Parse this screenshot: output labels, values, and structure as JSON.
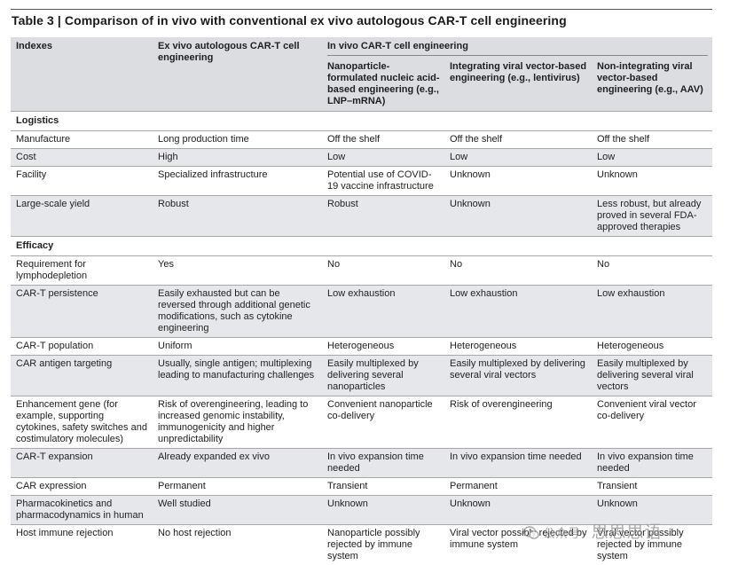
{
  "title": "Table 3 | Comparison of in vivo with conventional ex vivo autologous CAR-T cell engineering",
  "header": {
    "indexes": "Indexes",
    "ex_vivo": "Ex vivo autologous CAR-T cell engineering",
    "in_vivo": "In vivo CAR-T cell engineering",
    "nanoparticle": "Nanoparticle-formulated nucleic acid-based engineering (e.g., LNP–mRNA)",
    "integrating": "Integrating viral vector-based engineering (e.g., lentivirus)",
    "non_integrating": "Non-integrating viral vector-based engineering (e.g., AAV)"
  },
  "sections": [
    {
      "name": "Logistics",
      "rows": [
        {
          "index": "Manufacture",
          "ex_vivo": "Long production time",
          "nanoparticle": "Off the shelf",
          "integrating": "Off the shelf",
          "non_integrating": "Off the shelf"
        },
        {
          "index": "Cost",
          "ex_vivo": "High",
          "nanoparticle": "Low",
          "integrating": "Low",
          "non_integrating": "Low"
        },
        {
          "index": "Facility",
          "ex_vivo": "Specialized infrastructure",
          "nanoparticle": "Potential use of COVID-19 vaccine infrastructure",
          "integrating": "Unknown",
          "non_integrating": "Unknown"
        },
        {
          "index": "Large-scale yield",
          "ex_vivo": "Robust",
          "nanoparticle": "Robust",
          "integrating": "Unknown",
          "non_integrating": "Less robust, but already proved in several FDA-approved therapies"
        }
      ]
    },
    {
      "name": "Efficacy",
      "rows": [
        {
          "index": "Requirement for lymphodepletion",
          "ex_vivo": "Yes",
          "nanoparticle": "No",
          "integrating": "No",
          "non_integrating": "No"
        },
        {
          "index": "CAR-T persistence",
          "ex_vivo": "Easily exhausted but can be reversed through additional genetic modifications, such as cytokine engineering",
          "nanoparticle": "Low exhaustion",
          "integrating": "Low exhaustion",
          "non_integrating": "Low exhaustion"
        },
        {
          "index": "CAR-T population",
          "ex_vivo": "Uniform",
          "nanoparticle": "Heterogeneous",
          "integrating": "Heterogeneous",
          "non_integrating": "Heterogeneous"
        },
        {
          "index": "CAR antigen targeting",
          "ex_vivo": "Usually, single antigen; multiplexing leading to manufacturing challenges",
          "nanoparticle": "Easily multiplexed by delivering several nanoparticles",
          "integrating": "Easily multiplexed by delivering several viral vectors",
          "non_integrating": "Easily multiplexed by delivering several viral vectors"
        },
        {
          "index": "Enhancement gene (for example, supporting cytokines, safety switches and costimulatory molecules)",
          "ex_vivo": "Risk of overengineering, leading to increased genomic instability, immunogenicity and higher unpredictability",
          "nanoparticle": "Convenient nanoparticle co-delivery",
          "integrating": "Risk of overengineering",
          "non_integrating": "Convenient viral vector co-delivery"
        },
        {
          "index": "CAR-T expansion",
          "ex_vivo": "Already expanded ex vivo",
          "nanoparticle": "In vivo expansion time needed",
          "integrating": "In vivo expansion time needed",
          "non_integrating": "In vivo expansion time needed"
        },
        {
          "index": "CAR expression",
          "ex_vivo": "Permanent",
          "nanoparticle": "Transient",
          "integrating": "Permanent",
          "non_integrating": "Transient"
        },
        {
          "index": "Pharmacokinetics and pharmacodynamics in human",
          "ex_vivo": "Well studied",
          "nanoparticle": "Unknown",
          "integrating": "Unknown",
          "non_integrating": "Unknown"
        },
        {
          "index": "Host immune rejection",
          "ex_vivo": "No host rejection",
          "nanoparticle": "Nanoparticle possibly rejected by immune system",
          "integrating": "Viral vector possibly rejected by immune system",
          "non_integrating": "Viral vector possibly rejected by immune system"
        }
      ]
    }
  ],
  "watermark": {
    "text": "公众号 · ",
    "brand": "思思思语",
    "icon": "wechat-icon"
  }
}
